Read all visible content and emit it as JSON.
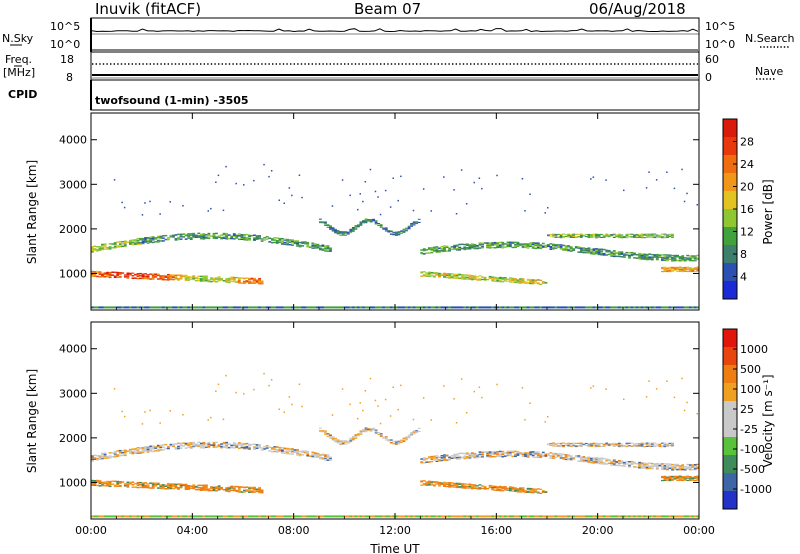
{
  "header": {
    "station": "Inuvik (fitACF)",
    "beam": "Beam 07",
    "date": "06/Aug/2018"
  },
  "status": {
    "nsky_label": "N.Sky",
    "nsearch_label": "N.Search",
    "nsky_ticks": [
      "10^5",
      "10^0"
    ],
    "nsearch_ticks": [
      "10^5",
      "10^0"
    ],
    "freq_label": "Freq.",
    "freq_unit": "[MHz]",
    "freq_ticks": [
      "18",
      "8"
    ],
    "nave_label": "Nave",
    "nave_ticks": [
      "60",
      "0"
    ],
    "cpid_label": "CPID",
    "cpid_value": "twofsound (1-min) -3505"
  },
  "colors": {
    "power": [
      "#1a2bd6",
      "#2c4fb2",
      "#3d7f6c",
      "#40a13d",
      "#8fc733",
      "#e3c321",
      "#f09619",
      "#ef6c10",
      "#e8390c",
      "#d91b0b"
    ],
    "velocity": [
      "#2332c9",
      "#3c66a6",
      "#3d8c5a",
      "#58c23a",
      "#c9c9c9",
      "#c9c9c9",
      "#f0a020",
      "#ef7e12",
      "#e8460c",
      "#e0160b"
    ]
  },
  "chart_data": [
    {
      "type": "heatmap",
      "title": "",
      "xlabel": "Time UT",
      "ylabel": "Slant Range [km]",
      "x_ticks": [
        "00:00",
        "04:00",
        "08:00",
        "12:00",
        "16:00",
        "20:00",
        "00:00"
      ],
      "xlim": [
        0,
        24
      ],
      "y_ticks": [
        "1000",
        "2000",
        "3000",
        "4000"
      ],
      "ylim": [
        180,
        4600
      ],
      "colorbar_label": "Power [dB]",
      "colorbar_ticks": [
        "4",
        "8",
        "12",
        "16",
        "20",
        "24",
        "28"
      ],
      "colorbar_range": [
        0,
        32
      ]
    },
    {
      "type": "heatmap",
      "title": "",
      "xlabel": "Time UT",
      "ylabel": "Slant Range [km]",
      "x_ticks": [
        "00:00",
        "04:00",
        "08:00",
        "12:00",
        "16:00",
        "20:00",
        "00:00"
      ],
      "xlim": [
        0,
        24
      ],
      "y_ticks": [
        "1000",
        "2000",
        "3000",
        "4000"
      ],
      "ylim": [
        180,
        4600
      ],
      "colorbar_label": "Velocity [m s⁻¹]",
      "colorbar_ticks": [
        "1000",
        "500",
        "100",
        "25",
        "-25",
        "-100",
        "-500",
        "-1000"
      ]
    }
  ]
}
